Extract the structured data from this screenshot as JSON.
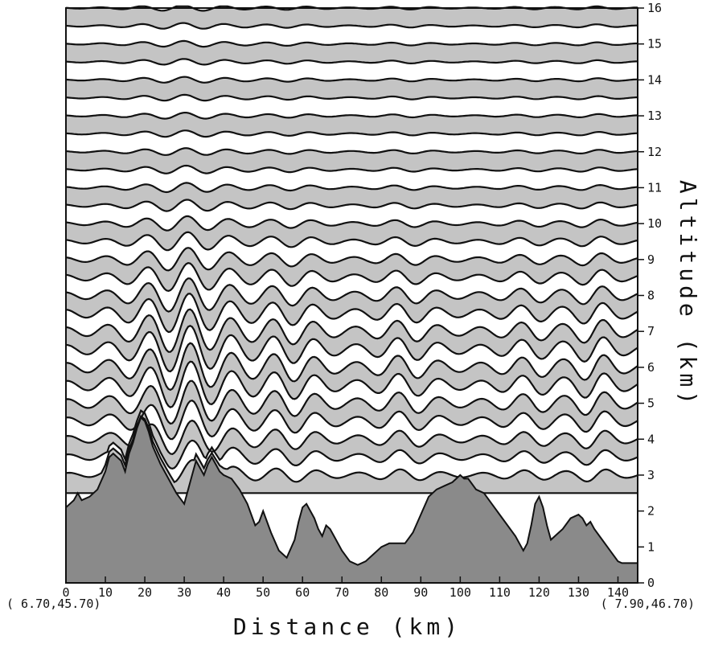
{
  "chart_data": {
    "type": "area",
    "title": "",
    "xlabel": "Distance (km)",
    "ylabel": "Altitude (km)",
    "xlim": [
      0,
      145
    ],
    "ylim": [
      0,
      16
    ],
    "x_ticks": [
      0,
      10,
      20,
      30,
      40,
      50,
      60,
      70,
      80,
      90,
      100,
      110,
      120,
      130,
      140
    ],
    "y_ticks": [
      0,
      1,
      2,
      3,
      4,
      5,
      6,
      7,
      8,
      9,
      10,
      11,
      12,
      13,
      14,
      15,
      16
    ],
    "y_axis_side": "right",
    "start_label": "( 6.70,45.70)",
    "end_label": "( 7.90,46.70)",
    "grid": false,
    "legend": "none",
    "colors": {
      "terrain": "#8a8a8a",
      "band": "#c4c4c4",
      "line": "#111111",
      "background": "#ffffff"
    },
    "terrain": {
      "x": [
        0,
        2,
        3,
        4,
        6,
        8,
        10,
        11,
        12,
        13,
        14,
        15,
        16,
        17,
        18,
        19,
        20,
        21,
        22,
        24,
        26,
        28,
        30,
        31,
        32,
        33,
        34,
        35,
        36,
        37,
        38,
        39,
        40,
        42,
        44,
        46,
        48,
        49,
        50,
        51,
        52,
        54,
        56,
        58,
        59,
        60,
        61,
        62,
        63,
        64,
        65,
        66,
        67,
        68,
        70,
        72,
        74,
        76,
        78,
        80,
        82,
        84,
        86,
        88,
        90,
        92,
        94,
        96,
        98,
        100,
        101,
        102,
        104,
        106,
        108,
        110,
        112,
        114,
        116,
        117,
        118,
        119,
        120,
        121,
        122,
        123,
        124,
        126,
        128,
        130,
        131,
        132,
        133,
        134,
        136,
        138,
        140,
        141,
        142,
        145
      ],
      "y": [
        2.1,
        2.3,
        2.5,
        2.3,
        2.4,
        2.6,
        3.1,
        3.5,
        3.6,
        3.5,
        3.4,
        3.1,
        3.6,
        3.9,
        4.3,
        4.6,
        4.5,
        4.2,
        3.8,
        3.3,
        2.9,
        2.5,
        2.2,
        2.6,
        3.0,
        3.4,
        3.2,
        3.0,
        3.3,
        3.5,
        3.3,
        3.1,
        3.0,
        2.9,
        2.6,
        2.2,
        1.6,
        1.7,
        2.0,
        1.7,
        1.4,
        0.9,
        0.7,
        1.2,
        1.7,
        2.1,
        2.2,
        2.0,
        1.8,
        1.5,
        1.3,
        1.6,
        1.5,
        1.3,
        0.9,
        0.6,
        0.5,
        0.6,
        0.8,
        1.0,
        1.1,
        1.1,
        1.1,
        1.4,
        1.9,
        2.4,
        2.6,
        2.7,
        2.8,
        3.0,
        2.9,
        2.9,
        2.6,
        2.5,
        2.2,
        1.9,
        1.6,
        1.3,
        0.9,
        1.1,
        1.6,
        2.2,
        2.4,
        2.1,
        1.6,
        1.2,
        1.3,
        1.5,
        1.8,
        1.9,
        1.8,
        1.6,
        1.7,
        1.5,
        1.2,
        0.9,
        0.6,
        0.55,
        0.55,
        0.55
      ]
    },
    "streamlines": {
      "base_altitudes": [
        2.5,
        3.0,
        3.5,
        4.0,
        4.5,
        5.0,
        5.5,
        6.0,
        6.5,
        7.0,
        7.5,
        8.0,
        8.5,
        9.0,
        9.5,
        10.0,
        10.5,
        11.0,
        11.5,
        12.0,
        12.5,
        13.0,
        13.5,
        14.0,
        14.5,
        15.0,
        15.5,
        16.0
      ],
      "fill": "alternating"
    }
  }
}
